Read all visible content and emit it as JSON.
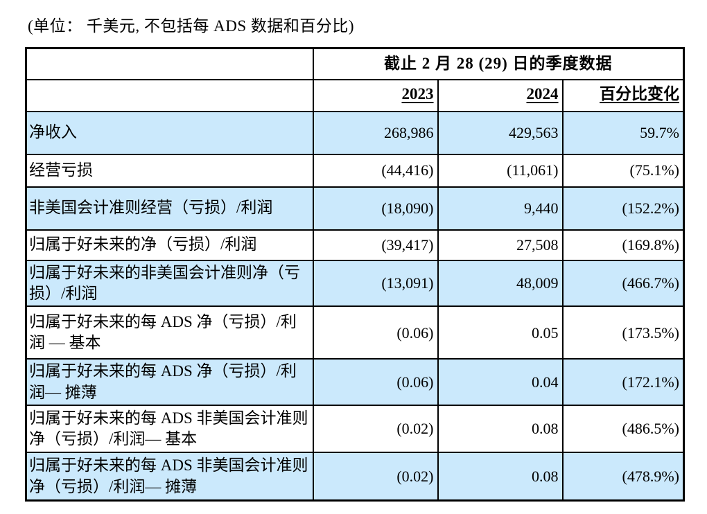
{
  "page": {
    "unit_note": "(单位： 千美元, 不包括每 ADS 数据和百分比)"
  },
  "colors": {
    "band_blue": "#cbe9fc",
    "border": "#000000",
    "background": "#ffffff",
    "text": "#000000"
  },
  "table": {
    "header": {
      "period_title": "截止 2 月 28 (29)  日的季度数据",
      "col_2023": "2023",
      "col_2024": "2024",
      "col_change": "百分比变化"
    },
    "rows": [
      {
        "label": "净收入",
        "y2023": "268,986",
        "y2024": "429,563",
        "change": "59.7%"
      },
      {
        "label": "经营亏损",
        "y2023": "(44,416)",
        "y2024": "(11,061)",
        "change": "(75.1%)"
      },
      {
        "label": "非美国会计准则经营（亏损）/利润",
        "y2023": "(18,090)",
        "y2024": "9,440",
        "change": "(152.2%)"
      },
      {
        "label": "归属于好未来的净（亏损）/利润",
        "y2023": "(39,417)",
        "y2024": "27,508",
        "change": "(169.8%)"
      },
      {
        "label": "归属于好未来的非美国会计准则净（亏损）/利润",
        "y2023": "(13,091)",
        "y2024": "48,009",
        "change": "(466.7%)"
      },
      {
        "label": "归属于好未来的每 ADS 净（亏损）/利润 — 基本",
        "y2023": "(0.06)",
        "y2024": "0.05",
        "change": "(173.5%)"
      },
      {
        "label": "归属于好未来的每 ADS 净（亏损）/利润— 摊薄",
        "y2023": "(0.06)",
        "y2024": "0.04",
        "change": "(172.1%)"
      },
      {
        "label": "归属于好未来的每 ADS 非美国会计准则净（亏损）/利润— 基本",
        "y2023": "(0.02)",
        "y2024": "0.08",
        "change": "(486.5%)"
      },
      {
        "label": "归属于好未来的每 ADS 非美国会计准则净（亏损）/利润— 摊薄",
        "y2023": "(0.02)",
        "y2024": "0.08",
        "change": "(478.9%)"
      }
    ]
  }
}
